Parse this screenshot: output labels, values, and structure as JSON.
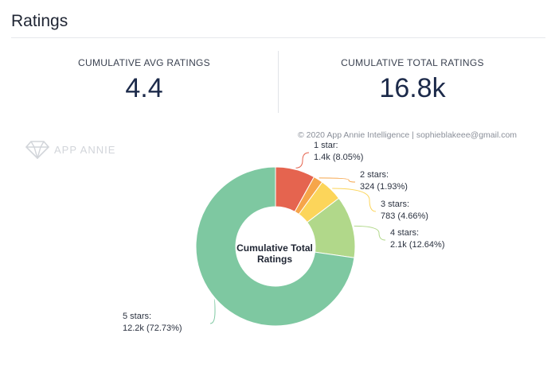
{
  "header": {
    "title": "Ratings"
  },
  "stats": {
    "avg": {
      "label": "CUMULATIVE AVG RATINGS",
      "value": "4.4"
    },
    "total": {
      "label": "CUMULATIVE TOTAL RATINGS",
      "value": "16.8k"
    }
  },
  "watermark": {
    "text": "APP ANNIE"
  },
  "copyright": "© 2020 App Annie Intelligence | sophieblakeee@gmail.com",
  "chart_data": {
    "type": "pie",
    "variant": "donut",
    "center_label": [
      "Cumulative Total",
      "Ratings"
    ],
    "slices": [
      {
        "name": "1 star:",
        "value_label": "1.4k (8.05%)",
        "percent": 8.05,
        "color": "#e5644f"
      },
      {
        "name": "2 stars:",
        "value_label": "324 (1.93%)",
        "percent": 1.93,
        "color": "#f6a54a"
      },
      {
        "name": "3 stars:",
        "value_label": "783 (4.66%)",
        "percent": 4.66,
        "color": "#fcd55a"
      },
      {
        "name": "4 stars:",
        "value_label": "2.1k (12.64%)",
        "percent": 12.64,
        "color": "#b1d88a"
      },
      {
        "name": "5 stars:",
        "value_label": "12.2k (72.73%)",
        "percent": 72.73,
        "color": "#7ec8a1"
      }
    ]
  }
}
